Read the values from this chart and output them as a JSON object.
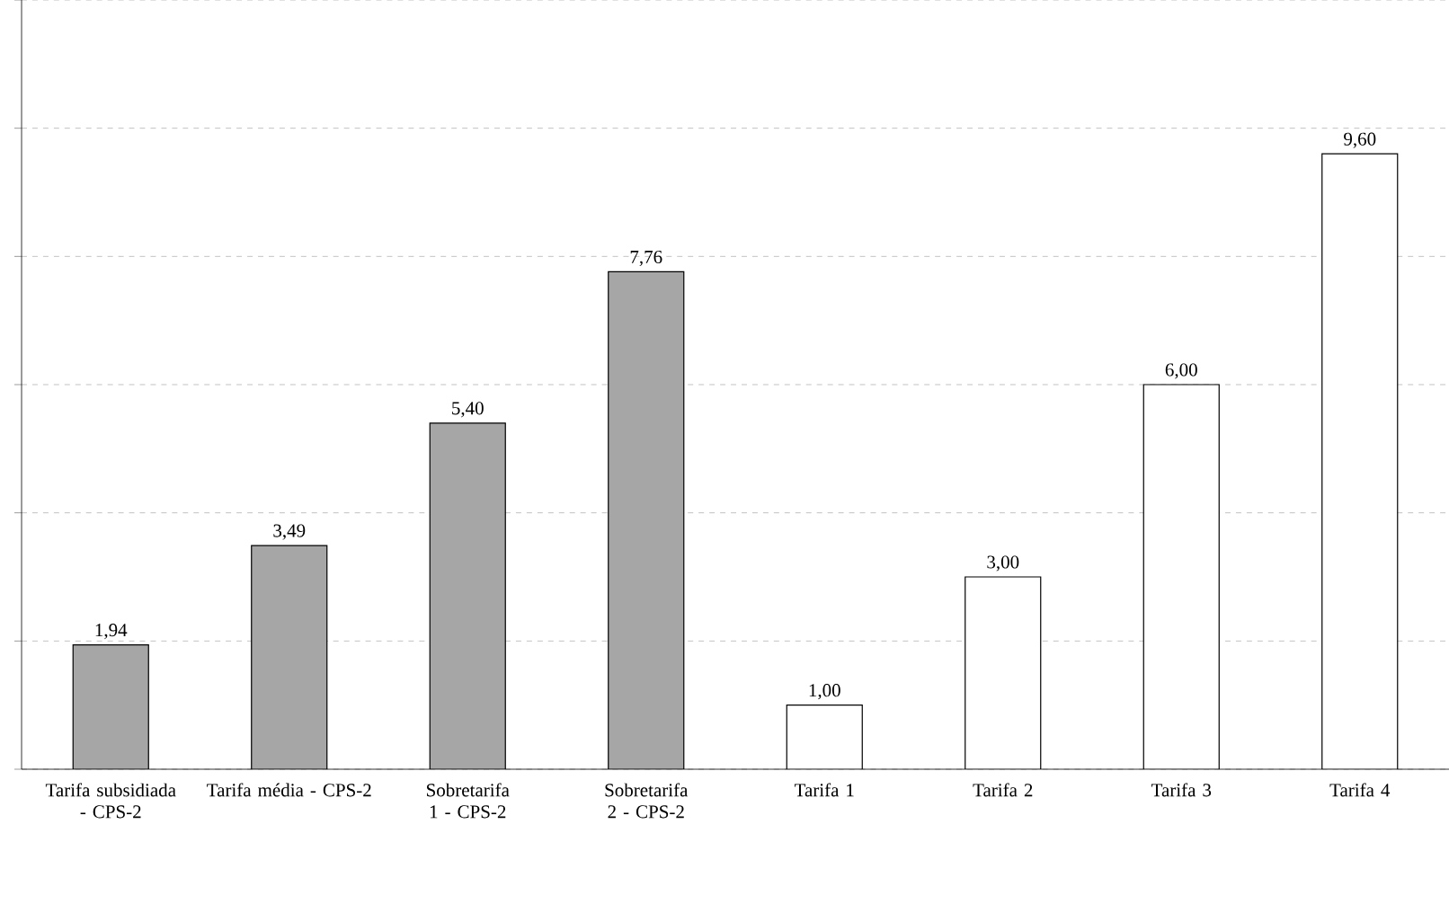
{
  "chart_data": {
    "type": "bar",
    "categories": [
      "Tarifa subsidiada - CPS-2",
      "Tarifa média - CPS-2",
      "Sobretarifa 1 - CPS-2",
      "Sobretarifa 2 - CPS-2",
      "Tarifa 1",
      "Tarifa 2",
      "Tarifa 3",
      "Tarifa 4"
    ],
    "values": [
      1.94,
      3.49,
      5.4,
      7.76,
      1.0,
      3.0,
      6.0,
      9.6
    ],
    "value_labels": [
      "1,94",
      "3,49",
      "5,40",
      "7,76",
      "1,00",
      "3,00",
      "6,00",
      "9,60"
    ],
    "colors": [
      "#a6a6a6",
      "#a6a6a6",
      "#a6a6a6",
      "#a6a6a6",
      "#ffffff",
      "#ffffff",
      "#ffffff",
      "#ffffff"
    ],
    "ylim": [
      0,
      12
    ],
    "yticks": [
      {
        "value": 0,
        "label": null
      },
      {
        "value": 2,
        "label": null
      },
      {
        "value": 4,
        "label": null
      },
      {
        "value": 6,
        "label": null
      },
      {
        "value": 8,
        "label": null
      },
      {
        "value": 10,
        "label": null
      },
      {
        "value": 12,
        "label": null
      }
    ],
    "tick_labels": "x",
    "grid": "y"
  }
}
